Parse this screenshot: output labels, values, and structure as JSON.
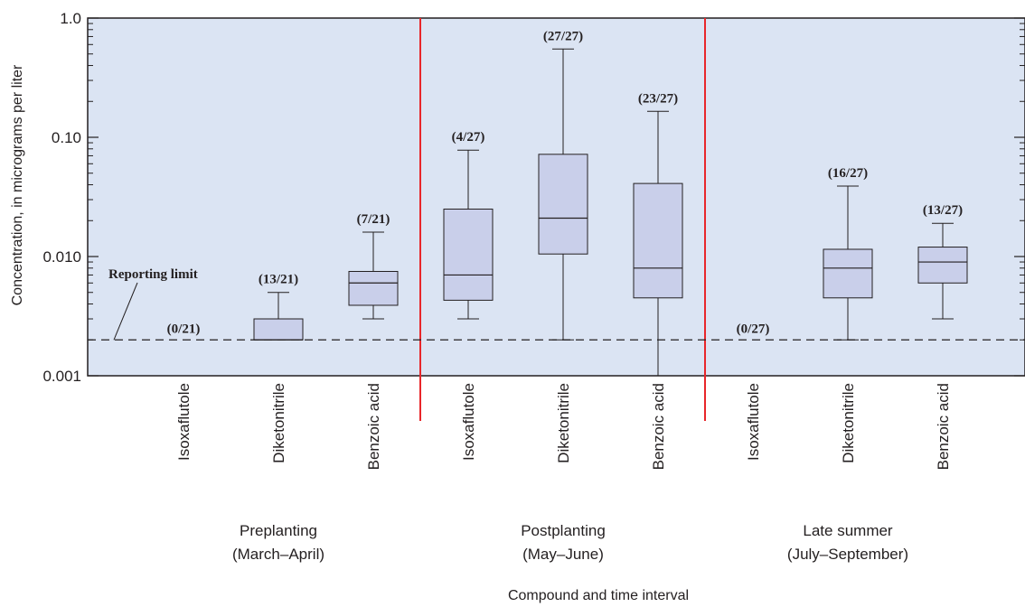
{
  "chart_data": {
    "type": "box",
    "ylabel": "Concentration, in micrograms per liter",
    "xlabel": "Compound and time interval",
    "yscale": "log",
    "ylim": [
      0.001,
      1.0
    ],
    "yticks": [
      {
        "value": 1.0,
        "label": "1.0"
      },
      {
        "value": 0.1,
        "label": "0.10"
      },
      {
        "value": 0.01,
        "label": "0.010"
      },
      {
        "value": 0.001,
        "label": "0.001"
      }
    ],
    "reference_line": {
      "value": 0.002,
      "label": "Reporting limit"
    },
    "groups": [
      {
        "line1": "Preplanting",
        "line2": "(March–April)"
      },
      {
        "line1": "Postplanting",
        "line2": "(May–June)"
      },
      {
        "line1": "Late summer",
        "line2": "(July–September)"
      }
    ],
    "boxes": [
      {
        "group": 0,
        "compound": "Isoxaflutole",
        "detections": "(0/21)",
        "box": null
      },
      {
        "group": 0,
        "compound": "Diketonitrile",
        "detections": "(13/21)",
        "box": {
          "whisker_low": 0.002,
          "q1": 0.002,
          "median": 0.002,
          "q3": 0.003,
          "whisker_high": 0.005
        }
      },
      {
        "group": 0,
        "compound": "Benzoic acid",
        "detections": "(7/21)",
        "box": {
          "whisker_low": 0.003,
          "q1": 0.0039,
          "median": 0.006,
          "q3": 0.0075,
          "whisker_high": 0.016
        }
      },
      {
        "group": 1,
        "compound": "Isoxaflutole",
        "detections": "(4/27)",
        "box": {
          "whisker_low": 0.003,
          "q1": 0.0043,
          "median": 0.007,
          "q3": 0.025,
          "whisker_high": 0.078
        }
      },
      {
        "group": 1,
        "compound": "Diketonitrile",
        "detections": "(27/27)",
        "box": {
          "whisker_low": 0.002,
          "q1": 0.0105,
          "median": 0.021,
          "q3": 0.072,
          "whisker_high": 0.55
        }
      },
      {
        "group": 1,
        "compound": "Benzoic acid",
        "detections": "(23/27)",
        "box": {
          "whisker_low": 0.001,
          "q1": 0.0045,
          "median": 0.008,
          "q3": 0.041,
          "whisker_high": 0.165
        }
      },
      {
        "group": 2,
        "compound": "Isoxaflutole",
        "detections": "(0/27)",
        "box": null
      },
      {
        "group": 2,
        "compound": "Diketonitrile",
        "detections": "(16/27)",
        "box": {
          "whisker_low": 0.002,
          "q1": 0.0045,
          "median": 0.008,
          "q3": 0.0115,
          "whisker_high": 0.039
        }
      },
      {
        "group": 2,
        "compound": "Benzoic acid",
        "detections": "(13/27)",
        "box": {
          "whisker_low": 0.003,
          "q1": 0.006,
          "median": 0.009,
          "q3": 0.012,
          "whisker_high": 0.019
        }
      }
    ],
    "colors": {
      "plot_bg": "#dbe4f3",
      "box_fill": "#c9cfea",
      "divider": "#e8262a",
      "ink": "#231f20"
    }
  }
}
